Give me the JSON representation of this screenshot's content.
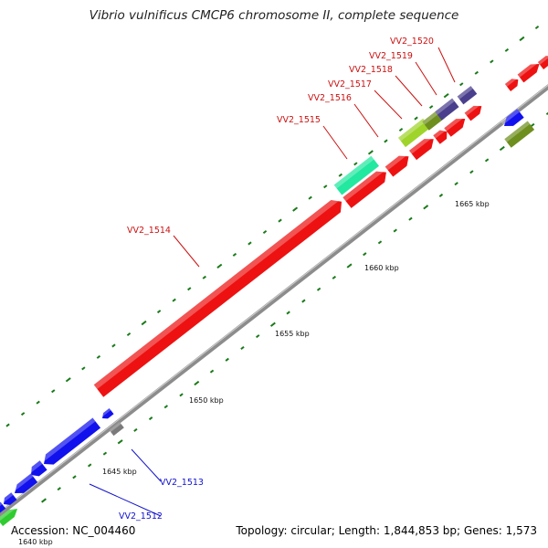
{
  "title": "Vibrio vulnificus CMCP6 chromosome II, complete sequence",
  "footer": {
    "accession": "Accession: NC_004460",
    "stats": "Topology: circular; Length: 1,844,853 bp; Genes: 1,573"
  },
  "colors": {
    "backbone": "#8c8c8c",
    "forward_gene": "#ee1111",
    "reverse_gene": "#1111ee",
    "forward_label": "#cc1111",
    "reverse_label": "#1111cc",
    "tick": "#1a7a1a",
    "teal_feature": "#22e8a0",
    "lime_feature": "#9fd42a",
    "olive_feature": "#6e8f1e",
    "purple_feature": "#4a3f8c",
    "gray_feature": "#7a7a7a",
    "green_feature": "#2fcc2f"
  },
  "axis": {
    "unit": "kbp",
    "ticks": [
      "1640 kbp",
      "1645 kbp",
      "1650 kbp",
      "1655 kbp",
      "1660 kbp",
      "1665 kbp"
    ]
  },
  "gene_labels": [
    {
      "text": "VV2_1512",
      "strand": "reverse"
    },
    {
      "text": "VV2_1513",
      "strand": "reverse"
    },
    {
      "text": "VV2_1514",
      "strand": "forward"
    },
    {
      "text": "VV2_1515",
      "strand": "forward"
    },
    {
      "text": "VV2_1516",
      "strand": "forward"
    },
    {
      "text": "VV2_1517",
      "strand": "forward"
    },
    {
      "text": "VV2_1518",
      "strand": "forward"
    },
    {
      "text": "VV2_1519",
      "strand": "forward"
    },
    {
      "text": "VV2_1520",
      "strand": "forward"
    }
  ]
}
